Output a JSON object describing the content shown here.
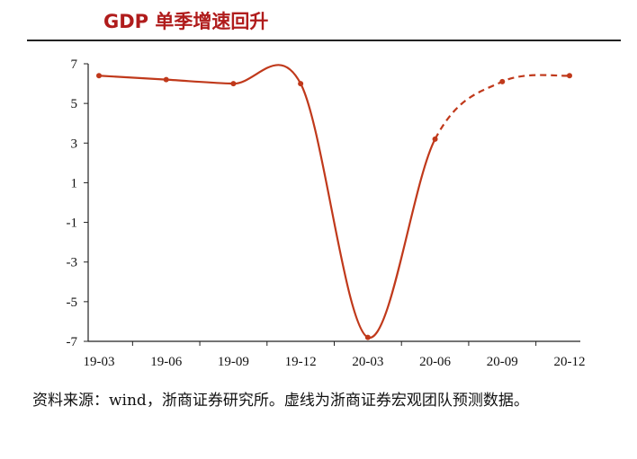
{
  "title": "GDP 单季增速回升",
  "source_note": "资料来源：wind，浙商证券研究所。虚线为浙商证券宏观团队预测数据。",
  "colors": {
    "title": "#b01c1c",
    "series": "#c0391b",
    "axis": "#222222"
  },
  "chart_data": {
    "type": "line",
    "title": "GDP 单季增速回升",
    "xlabel": "",
    "ylabel": "",
    "categories": [
      "19-03",
      "19-06",
      "19-09",
      "19-12",
      "20-03",
      "20-06",
      "20-09",
      "20-12"
    ],
    "yticks": [
      7,
      5,
      3,
      1,
      -1,
      -3,
      -5,
      -7
    ],
    "ylim": [
      -7,
      7
    ],
    "grid": false,
    "legend": "none",
    "series": [
      {
        "values": [
          6.4,
          6.2,
          6.0,
          6.0,
          -6.8,
          3.2,
          6.1,
          6.4
        ],
        "style": "smooth line with markers; solid through 20-06, dashed after 20-06 (forecast)",
        "forecast_from_index": 5
      }
    ]
  }
}
